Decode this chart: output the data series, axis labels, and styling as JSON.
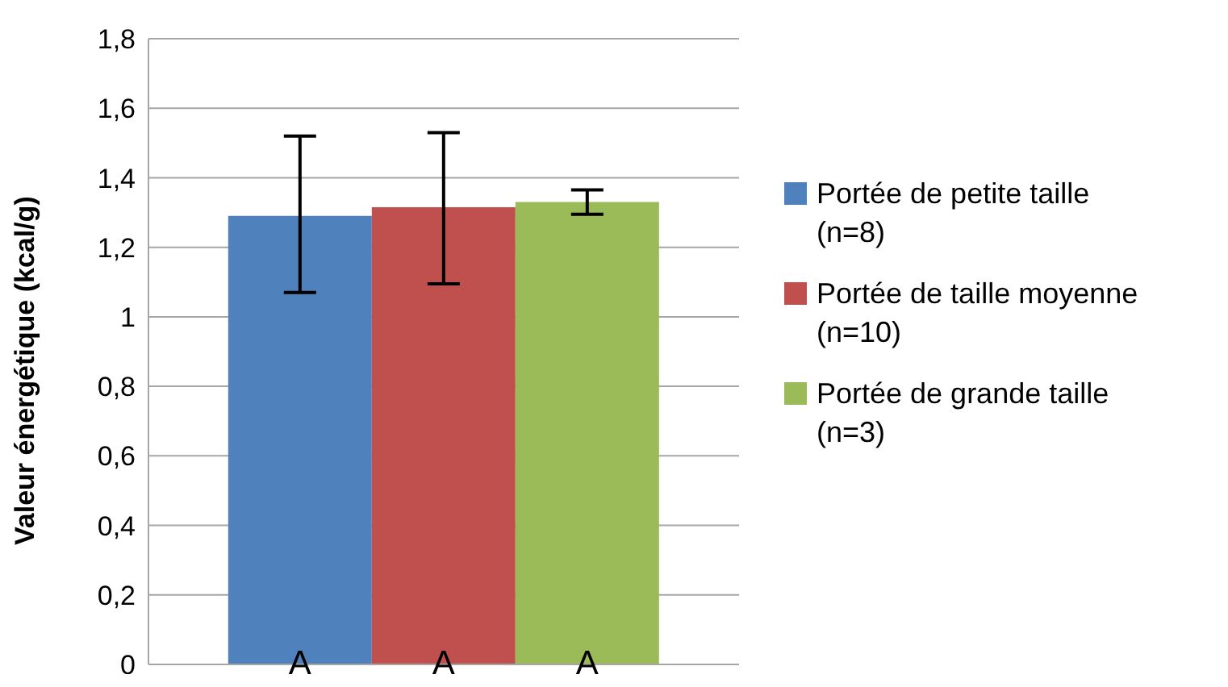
{
  "chart_data": {
    "type": "bar",
    "ylabel": "Valeur énergétique (kcal/g)",
    "categories": [
      null
    ],
    "series": [
      {
        "name": "Portée de petite taille (n=8)",
        "color": "#4f81bd",
        "values": [
          1.29
        ],
        "errors": [
          [
            1.07,
            1.52
          ]
        ]
      },
      {
        "name": "Portée de taille moyenne (n=10)",
        "color": "#c0504d",
        "values": [
          1.315
        ],
        "errors": [
          [
            1.095,
            1.53
          ]
        ]
      },
      {
        "name": "Portée de grande taille (n=3)",
        "color": "#9bbb59",
        "values": [
          1.33
        ],
        "errors": [
          [
            1.295,
            1.365
          ]
        ]
      }
    ],
    "ylim": [
      0,
      1.8
    ],
    "yticks": [
      0,
      {
        "value": 0.2,
        "label": "0,2"
      },
      {
        "value": 0.4,
        "label": "0,4"
      },
      {
        "value": 0.6,
        "label": "0,6"
      },
      {
        "value": 0.8,
        "label": "0,8"
      },
      1,
      {
        "value": 1.2,
        "label": "1,2"
      },
      {
        "value": 1.4,
        "label": "1,4"
      },
      {
        "value": 1.6,
        "label": "1,6"
      },
      {
        "value": 1.8,
        "label": "1,8"
      }
    ],
    "annotations": [
      "A",
      "A",
      "A"
    ],
    "grid": "y",
    "legend": "right"
  }
}
